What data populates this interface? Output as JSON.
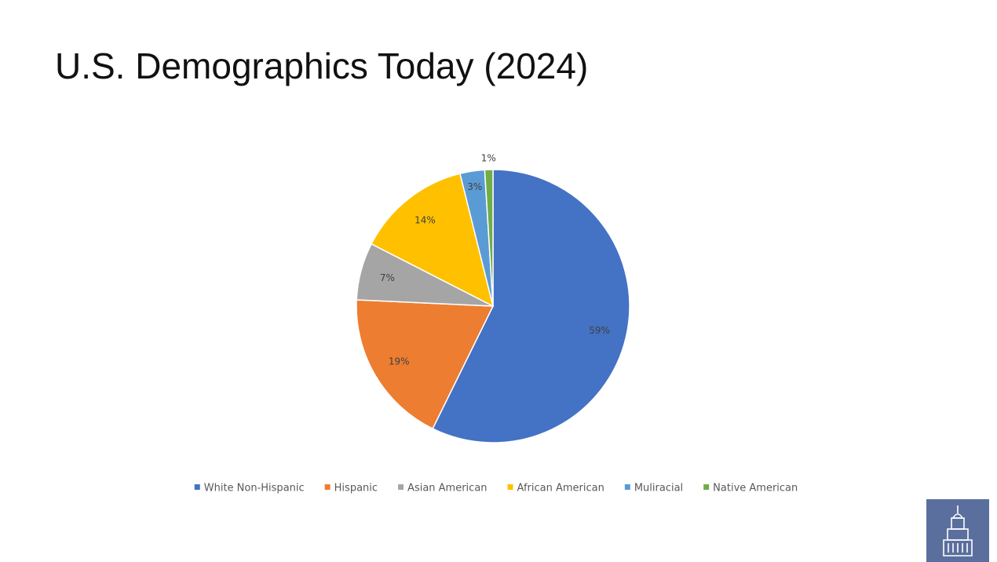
{
  "chart_data": {
    "type": "pie",
    "title": "U.S. Demographics Today (2024)",
    "categories": [
      "White Non-Hispanic",
      "Hispanic",
      "Asian American",
      "African American",
      "Muliracial",
      "Native American"
    ],
    "values": [
      59,
      19,
      7,
      14,
      3,
      1
    ],
    "value_labels": [
      "59%",
      "19%",
      "7%",
      "14%",
      "3%",
      "1%"
    ],
    "colors": [
      "#4472c4",
      "#ed7d31",
      "#a5a5a5",
      "#ffc000",
      "#5b9bd5",
      "#70ad47"
    ],
    "legend": "bottom"
  }
}
